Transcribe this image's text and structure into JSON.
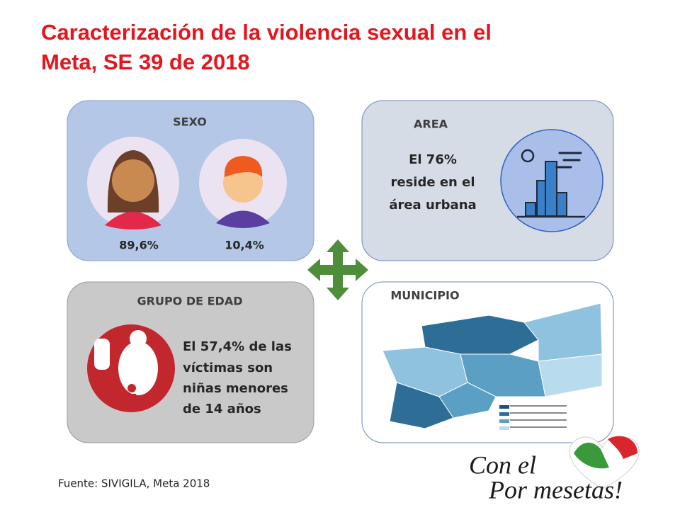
{
  "title": [
    "Caracterización de la violencia sexual en el",
    "Meta, SE 39 de 2018"
  ],
  "panels": {
    "sexo": {
      "heading": "SEXO",
      "female": "89,6%",
      "male": "10,4%"
    },
    "area": {
      "heading": "AREA",
      "text": [
        "El 76%",
        "reside en el",
        "área urbana"
      ]
    },
    "grupo_edad": {
      "heading": "GRUPO DE EDAD",
      "text": [
        "El 57,4% de las",
        "víctimas son",
        "niñas menores",
        "de 14 años"
      ]
    },
    "municipio": {
      "heading": "MUNICIPIO"
    }
  },
  "footer": {
    "source": "Fuente: SIVIGILA, Meta 2018"
  },
  "logo": {
    "line1": "Con el",
    "line2": "Por mesetas!"
  }
}
